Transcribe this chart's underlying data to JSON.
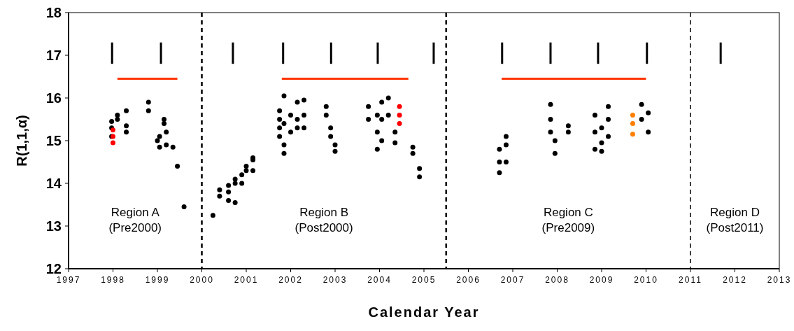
{
  "chart_data": {
    "type": "scatter",
    "xlabel": "Calendar Year",
    "ylabel": "R(1,1,α)",
    "xlim": [
      1997,
      2013
    ],
    "xticks": [
      1997,
      1998,
      1999,
      2000,
      2001,
      2002,
      2003,
      2004,
      2005,
      2006,
      2007,
      2008,
      2009,
      2010,
      2011,
      2012,
      2013
    ],
    "ylim": [
      12,
      18
    ],
    "yticks": [
      12,
      13,
      14,
      15,
      16,
      17,
      18
    ],
    "marker": "circle",
    "series": [
      {
        "color": "#000000",
        "x": [
          1997.97,
          1997.97,
          1997.97,
          1998.1,
          1998.1,
          1998.3,
          1998.3,
          1998.3,
          1998.8,
          1998.8,
          1999.0,
          1999.05,
          1999.05,
          1999.15,
          1999.15,
          1999.2,
          1999.2,
          1999.35,
          1999.45,
          1999.6,
          2000.25,
          2000.4,
          2000.4,
          2000.6,
          2000.6,
          2000.6,
          2000.75,
          2000.75,
          2000.75,
          2000.9,
          2000.9,
          2001.0,
          2001.0,
          2001.15,
          2001.15,
          2001.15,
          2001.75,
          2001.75,
          2001.75,
          2001.75,
          2001.85,
          2001.85,
          2001.85,
          2001.85,
          2002.0,
          2002.0,
          2002.15,
          2002.15,
          2002.15,
          2002.3,
          2002.3,
          2002.3,
          2002.8,
          2002.8,
          2002.9,
          2002.9,
          2003.0,
          2003.0,
          2003.75,
          2003.75,
          2003.95,
          2003.95,
          2003.95,
          2004.05,
          2004.05,
          2004.05,
          2004.2,
          2004.2,
          2004.35,
          2004.35,
          2004.75,
          2004.75,
          2004.9,
          2004.9,
          2006.7,
          2006.7,
          2006.7,
          2006.85,
          2006.85,
          2006.85,
          2007.85,
          2007.85,
          2007.85,
          2007.95,
          2007.95,
          2008.25,
          2008.25,
          2008.85,
          2008.85,
          2008.85,
          2009.0,
          2009.0,
          2009.0,
          2009.15,
          2009.15,
          2009.15,
          2009.9,
          2009.9,
          2010.05,
          2010.05
        ],
        "values": [
          15.45,
          15.3,
          15.1,
          15.6,
          15.5,
          15.7,
          15.35,
          15.2,
          15.9,
          15.7,
          15.0,
          14.85,
          15.1,
          15.4,
          15.5,
          15.2,
          14.9,
          14.85,
          14.4,
          13.45,
          13.25,
          13.7,
          13.85,
          13.8,
          13.95,
          13.6,
          13.55,
          14.0,
          14.1,
          14.2,
          14.0,
          14.4,
          14.3,
          14.55,
          14.3,
          14.6,
          15.5,
          15.7,
          15.3,
          15.1,
          16.05,
          15.4,
          14.9,
          14.7,
          15.6,
          15.2,
          15.9,
          15.5,
          15.3,
          15.95,
          15.6,
          15.3,
          15.8,
          15.6,
          15.3,
          15.1,
          14.9,
          14.75,
          15.8,
          15.5,
          15.6,
          15.2,
          14.8,
          15.9,
          15.5,
          15.0,
          16.0,
          15.6,
          15.2,
          14.95,
          14.85,
          14.7,
          14.35,
          14.15,
          14.25,
          14.5,
          14.8,
          14.5,
          14.9,
          15.1,
          15.85,
          15.5,
          15.2,
          15.0,
          14.7,
          15.35,
          15.2,
          15.6,
          15.2,
          14.8,
          15.3,
          14.75,
          14.95,
          15.8,
          15.5,
          15.1,
          15.85,
          15.5,
          15.65,
          15.2
        ]
      },
      {
        "color": "#ff0000",
        "x": [
          1998.0,
          1998.0,
          1998.0,
          2004.45,
          2004.45,
          2004.45
        ],
        "values": [
          15.25,
          15.1,
          14.95,
          15.8,
          15.6,
          15.4
        ]
      },
      {
        "color": "#ff7f00",
        "x": [
          2009.7,
          2009.7,
          2009.7
        ],
        "values": [
          15.6,
          15.4,
          15.15
        ]
      },
      {
        "type": "line",
        "marker": "none",
        "color": "#000000",
        "x": [
          1997.98,
          1997.98
        ],
        "values": [
          16.8,
          17.3
        ]
      },
      {
        "type": "line",
        "marker": "none",
        "color": "#000000",
        "x": [
          1999.08,
          1999.08
        ],
        "values": [
          16.8,
          17.3
        ]
      },
      {
        "type": "line",
        "marker": "none",
        "color": "#000000",
        "x": [
          2000.7,
          2000.7
        ],
        "values": [
          16.8,
          17.3
        ]
      },
      {
        "type": "line",
        "marker": "none",
        "color": "#000000",
        "x": [
          2001.83,
          2001.83
        ],
        "values": [
          16.8,
          17.3
        ]
      },
      {
        "type": "line",
        "marker": "none",
        "color": "#000000",
        "x": [
          2002.91,
          2002.91
        ],
        "values": [
          16.8,
          17.3
        ]
      },
      {
        "type": "line",
        "marker": "none",
        "color": "#000000",
        "x": [
          2003.96,
          2003.96
        ],
        "values": [
          16.8,
          17.3
        ]
      },
      {
        "type": "line",
        "marker": "none",
        "color": "#000000",
        "x": [
          2005.22,
          2005.22
        ],
        "values": [
          16.8,
          17.3
        ]
      },
      {
        "type": "line",
        "marker": "none",
        "color": "#000000",
        "x": [
          2006.76,
          2006.76
        ],
        "values": [
          16.8,
          17.3
        ]
      },
      {
        "type": "line",
        "marker": "none",
        "color": "#000000",
        "x": [
          2007.85,
          2007.85
        ],
        "values": [
          16.8,
          17.3
        ]
      },
      {
        "type": "line",
        "marker": "none",
        "color": "#000000",
        "x": [
          2008.92,
          2008.92
        ],
        "values": [
          16.8,
          17.3
        ]
      },
      {
        "type": "line",
        "marker": "none",
        "color": "#000000",
        "x": [
          2010.02,
          2010.02
        ],
        "values": [
          16.8,
          17.3
        ]
      },
      {
        "type": "line",
        "marker": "none",
        "color": "#000000",
        "x": [
          2011.68,
          2011.68
        ],
        "values": [
          16.8,
          17.3
        ]
      },
      {
        "type": "line",
        "marker": "none",
        "color": "#ff3300",
        "x": [
          1998.1,
          1999.45
        ],
        "values": [
          16.45,
          16.45
        ]
      },
      {
        "type": "line",
        "marker": "none",
        "color": "#ff3300",
        "x": [
          2001.8,
          2004.65
        ],
        "values": [
          16.45,
          16.45
        ]
      },
      {
        "type": "line",
        "marker": "none",
        "color": "#ff3300",
        "x": [
          2006.75,
          2010.0
        ],
        "values": [
          16.45,
          16.45
        ]
      }
    ],
    "ref_lines": [
      {
        "axis": "x",
        "value": 2000,
        "color": "#000000",
        "line_style": "dashed"
      },
      {
        "axis": "x",
        "value": 2005.5,
        "color": "#000000",
        "line_style": "dashed"
      },
      {
        "axis": "x",
        "value": 2011,
        "color": "#000000",
        "line_style": "dashed"
      }
    ],
    "annotations": [
      "Region A\n(Pre2000)",
      "Region B\n(Post2000)",
      "Region C\n(Pre2009)",
      "Region D\n(Post2011)"
    ]
  }
}
